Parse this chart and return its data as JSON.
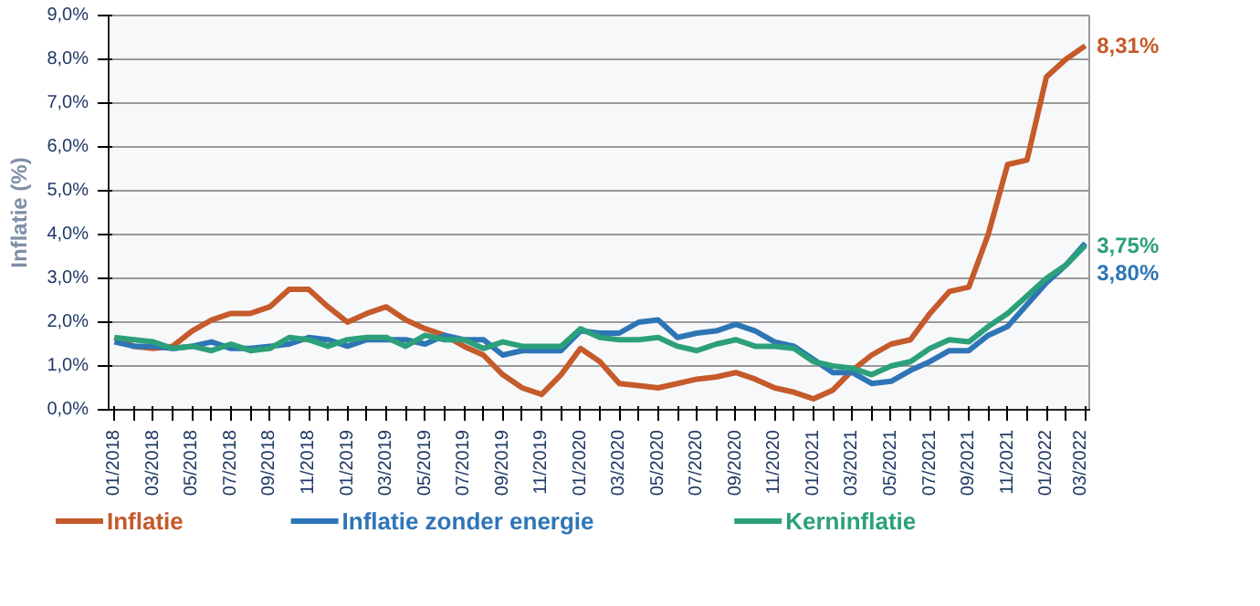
{
  "chart_data": {
    "type": "line",
    "ylabel": "Inflatie (%)",
    "categories": [
      "01/2018",
      null,
      "03/2018",
      null,
      "05/2018",
      null,
      "07/2018",
      null,
      "09/2018",
      null,
      "11/2018",
      null,
      "01/2019",
      null,
      "03/2019",
      null,
      "05/2019",
      null,
      "07/2019",
      null,
      "09/2019",
      null,
      "11/2019",
      null,
      "01/2020",
      null,
      "03/2020",
      null,
      "05/2020",
      null,
      "07/2020",
      null,
      "09/2020",
      null,
      "11/2020",
      null,
      "01/2021",
      null,
      "03/2021",
      null,
      "05/2021",
      null,
      "07/2021",
      null,
      "09/2021",
      null,
      "11/2021",
      null,
      "01/2022",
      null,
      "03/2022"
    ],
    "series": [
      {
        "name": "Inflatie",
        "color": "#c55a2b",
        "values": [
          1.65,
          1.45,
          1.4,
          1.45,
          1.8,
          2.05,
          2.2,
          2.2,
          2.35,
          2.75,
          2.75,
          2.35,
          2.0,
          2.2,
          2.35,
          2.05,
          1.85,
          1.7,
          1.45,
          1.25,
          0.8,
          0.5,
          0.35,
          0.8,
          1.4,
          1.1,
          0.6,
          0.55,
          0.5,
          0.6,
          0.7,
          0.75,
          0.85,
          0.7,
          0.5,
          0.4,
          0.25,
          0.45,
          0.9,
          1.25,
          1.5,
          1.6,
          2.2,
          2.7,
          2.8,
          4.0,
          5.6,
          5.7,
          7.6,
          8.0,
          8.31
        ]
      },
      {
        "name": "Inflatie zonder energie",
        "color": "#2e75b6",
        "values": [
          1.55,
          1.45,
          1.45,
          1.4,
          1.45,
          1.55,
          1.4,
          1.4,
          1.45,
          1.5,
          1.65,
          1.6,
          1.45,
          1.6,
          1.6,
          1.6,
          1.5,
          1.7,
          1.6,
          1.6,
          1.25,
          1.35,
          1.35,
          1.35,
          1.8,
          1.75,
          1.75,
          2.0,
          2.05,
          1.65,
          1.75,
          1.8,
          1.95,
          1.8,
          1.55,
          1.45,
          1.15,
          0.85,
          0.85,
          0.6,
          0.65,
          0.9,
          1.1,
          1.35,
          1.35,
          1.7,
          1.9,
          2.4,
          2.9,
          3.3,
          3.8
        ]
      },
      {
        "name": "Kerninflatie",
        "color": "#2ca07a",
        "values": [
          1.65,
          1.6,
          1.55,
          1.4,
          1.45,
          1.35,
          1.5,
          1.35,
          1.4,
          1.65,
          1.6,
          1.45,
          1.6,
          1.65,
          1.65,
          1.45,
          1.7,
          1.6,
          1.6,
          1.4,
          1.55,
          1.45,
          1.45,
          1.45,
          1.85,
          1.65,
          1.6,
          1.6,
          1.65,
          1.45,
          1.35,
          1.5,
          1.6,
          1.45,
          1.45,
          1.4,
          1.1,
          1.0,
          0.95,
          0.8,
          1.0,
          1.1,
          1.4,
          1.6,
          1.55,
          1.9,
          2.2,
          2.6,
          3.0,
          3.3,
          3.75
        ]
      }
    ],
    "ylim": [
      0,
      9
    ],
    "yticks": [
      {
        "value": 0,
        "label": "0,0%"
      },
      {
        "value": 1,
        "label": "1,0%"
      },
      {
        "value": 2,
        "label": "2,0%"
      },
      {
        "value": 3,
        "label": "3,0%"
      },
      {
        "value": 4,
        "label": "4,0%"
      },
      {
        "value": 5,
        "label": "5,0%"
      },
      {
        "value": 6,
        "label": "6,0%"
      },
      {
        "value": 7,
        "label": "7,0%"
      },
      {
        "value": 8,
        "label": "8,0%"
      },
      {
        "value": 9,
        "label": "9,0%"
      }
    ],
    "grid": "y",
    "legend": "bottom",
    "marker": "none",
    "line_style": "solid",
    "annotations": [
      {
        "text": "8,31%",
        "x": "03/2022",
        "y": 8.31
      },
      {
        "text": "3,75%",
        "x": "03/2022",
        "y": 3.75
      },
      {
        "text": "3,80%",
        "x": "03/2022",
        "y": 3.8
      }
    ]
  }
}
